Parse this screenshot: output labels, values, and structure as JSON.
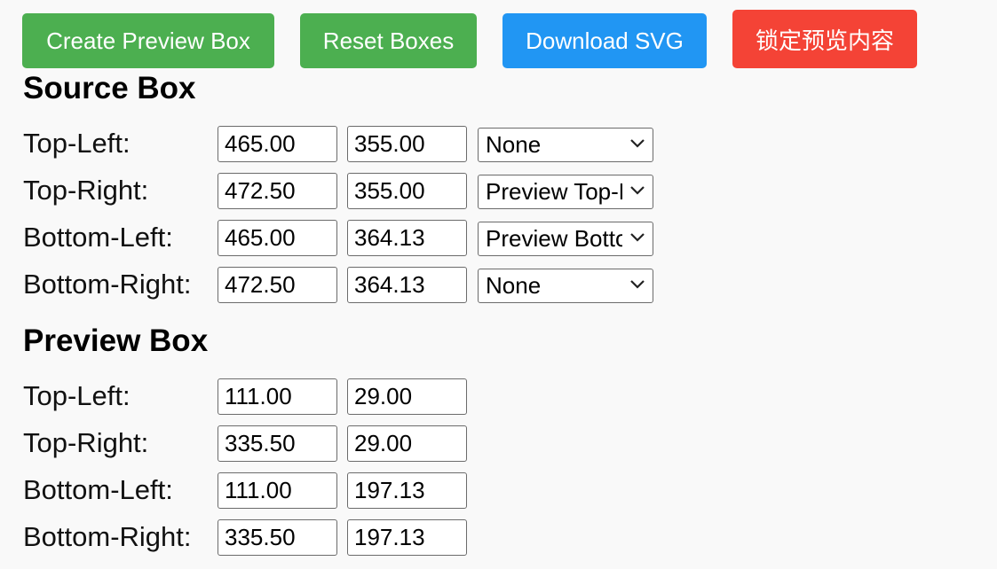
{
  "toolbar": {
    "create_label": "Create Preview Box",
    "reset_label": "Reset Boxes",
    "download_label": "Download SVG",
    "lock_label": "锁定预览内容"
  },
  "source": {
    "title": "Source Box",
    "rows": [
      {
        "label": "Top-Left:",
        "x": "465.00",
        "y": "355.00",
        "link": "None"
      },
      {
        "label": "Top-Right:",
        "x": "472.50",
        "y": "355.00",
        "link": "Preview Top-Right"
      },
      {
        "label": "Bottom-Left:",
        "x": "465.00",
        "y": "364.13",
        "link": "Preview Bottom-Left"
      },
      {
        "label": "Bottom-Right:",
        "x": "472.50",
        "y": "364.13",
        "link": "None"
      }
    ]
  },
  "preview": {
    "title": "Preview Box",
    "rows": [
      {
        "label": "Top-Left:",
        "x": "111.00",
        "y": "29.00"
      },
      {
        "label": "Top-Right:",
        "x": "335.50",
        "y": "29.00"
      },
      {
        "label": "Bottom-Left:",
        "x": "111.00",
        "y": "197.13"
      },
      {
        "label": "Bottom-Right:",
        "x": "335.50",
        "y": "197.13"
      }
    ]
  },
  "colors": {
    "green": "#4caf50",
    "blue": "#2196f3",
    "red": "#f44336",
    "background": "#f9f9f9"
  },
  "icons": {
    "select_arrow": "chevron-down-icon"
  }
}
